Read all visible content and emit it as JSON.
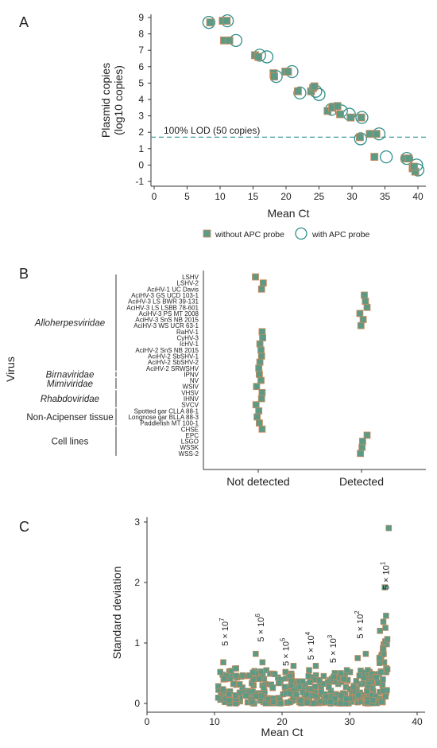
{
  "colors": {
    "marker": "#5d9a86",
    "edge": "#d08a5a",
    "open": "#2f8f8a",
    "lod": "#3a9a9a",
    "axis": "#333333"
  },
  "panels": {
    "a": "A",
    "b": "B",
    "c": "C"
  },
  "chart_data": [
    {
      "type": "scatter",
      "panel": "A",
      "xlabel": "Mean Ct",
      "ylabel_line1": "Plasmid copies",
      "ylabel_line2": "(log10 copies)",
      "xlim": [
        0,
        40
      ],
      "ylim": [
        -1,
        9
      ],
      "xticks": [
        0,
        5,
        10,
        15,
        20,
        25,
        30,
        35,
        40
      ],
      "yticks": [
        -1,
        0,
        1,
        2,
        3,
        4,
        5,
        6,
        7,
        8,
        9
      ],
      "lod": {
        "y": 1.7,
        "label": "100% LOD (50 copies)"
      },
      "legend_position": "bottom",
      "series": [
        {
          "name": "without APC probe",
          "marker": "filled-square",
          "points": [
            [
              8.5,
              8.7
            ],
            [
              10.4,
              8.8
            ],
            [
              11.0,
              8.8
            ],
            [
              10.6,
              7.6
            ],
            [
              11.4,
              7.6
            ],
            [
              15.3,
              6.7
            ],
            [
              15.8,
              6.6
            ],
            [
              18.1,
              5.6
            ],
            [
              18.2,
              5.4
            ],
            [
              19.9,
              5.7
            ],
            [
              20.3,
              5.7
            ],
            [
              21.8,
              4.5
            ],
            [
              23.8,
              4.5
            ],
            [
              24.1,
              4.7
            ],
            [
              24.3,
              4.8
            ],
            [
              26.3,
              3.3
            ],
            [
              27.0,
              3.5
            ],
            [
              27.8,
              3.6
            ],
            [
              28.2,
              3.1
            ],
            [
              29.8,
              2.9
            ],
            [
              31.2,
              1.7
            ],
            [
              31.4,
              2.9
            ],
            [
              32.7,
              1.9
            ],
            [
              33.4,
              0.5
            ],
            [
              33.7,
              1.9
            ],
            [
              38.0,
              0.4
            ],
            [
              38.6,
              0.4
            ],
            [
              39.2,
              -0.2
            ],
            [
              39.6,
              -0.4
            ],
            [
              39.4,
              -0.1
            ]
          ]
        },
        {
          "name": "with APC probe",
          "marker": "open-circle",
          "points": [
            [
              8.3,
              8.7
            ],
            [
              11.1,
              8.8
            ],
            [
              12.4,
              7.6
            ],
            [
              16.0,
              6.7
            ],
            [
              17.1,
              6.6
            ],
            [
              18.5,
              5.4
            ],
            [
              20.9,
              5.7
            ],
            [
              22.1,
              4.4
            ],
            [
              24.5,
              4.5
            ],
            [
              25.0,
              4.3
            ],
            [
              26.9,
              3.4
            ],
            [
              28.4,
              3.3
            ],
            [
              29.6,
              3.1
            ],
            [
              31.5,
              2.9
            ],
            [
              31.3,
              1.6
            ],
            [
              34.1,
              1.9
            ],
            [
              35.2,
              0.5
            ],
            [
              38.3,
              0.4
            ],
            [
              39.8,
              0.0
            ],
            [
              40.0,
              -0.3
            ]
          ]
        }
      ]
    },
    {
      "type": "scatter",
      "panel": "B",
      "ylabel": "Virus",
      "categories": [
        "Not detected",
        "Detected"
      ],
      "groups": [
        {
          "name": "Alloherpesviridae",
          "italic": true
        },
        {
          "name": "Birnaviridae",
          "italic": true
        },
        {
          "name": "Mimiviridae",
          "italic": true
        },
        {
          "name": "Rhabdoviridae",
          "italic": true
        },
        {
          "name": "Non-Acipenser tissue",
          "italic": false
        },
        {
          "name": "Cell lines",
          "italic": false
        }
      ],
      "rows": [
        {
          "label": "LSHV",
          "group": 0,
          "result": 0,
          "jitter": -0.25
        },
        {
          "label": "LSHV-2",
          "group": 0,
          "result": 0,
          "jitter": 0.45
        },
        {
          "label": "AciHV-1 UC Davis",
          "group": 0,
          "result": 0,
          "jitter": 0.3
        },
        {
          "label": "AciHV-3 GS UCD 103-1",
          "group": 0,
          "result": 1,
          "jitter": 0.25
        },
        {
          "label": "AciHV-3 LS BWR 39-131",
          "group": 0,
          "result": 1,
          "jitter": 0.35
        },
        {
          "label": "AciHV-3 LS LSBB 78-601",
          "group": 0,
          "result": 1,
          "jitter": 0.5
        },
        {
          "label": "AciHV-3 PS MT 2008",
          "group": 0,
          "result": 1,
          "jitter": -0.15
        },
        {
          "label": "AciHV-3 SnS NB 2015",
          "group": 0,
          "result": 1,
          "jitter": 0.15
        },
        {
          "label": "AciHV-3 WS UCR 63-1",
          "group": 0,
          "result": 1,
          "jitter": -0.05
        },
        {
          "label": "RaHV-1",
          "group": 0,
          "result": 0,
          "jitter": 0.35
        },
        {
          "label": "CyHV-3",
          "group": 0,
          "result": 0,
          "jitter": 0.4
        },
        {
          "label": "IcHV-1",
          "group": 0,
          "result": 0,
          "jitter": 0.15
        },
        {
          "label": "AciHV-2 SnS NB 2015",
          "group": 0,
          "result": 0,
          "jitter": 0.25
        },
        {
          "label": "AciHV-2 SbSHV-1",
          "group": 0,
          "result": 0,
          "jitter": 0.3
        },
        {
          "label": "AciHV-2 SbSHV-2",
          "group": 0,
          "result": 0,
          "jitter": 0.15
        },
        {
          "label": "AciHV-2 SRWSHV",
          "group": 0,
          "result": 0,
          "jitter": 0.05
        },
        {
          "label": "IPNV",
          "group": 1,
          "result": 0,
          "jitter": 0.1
        },
        {
          "label": "NV",
          "group": 2,
          "result": 0,
          "jitter": 0.25
        },
        {
          "label": "WSIV",
          "group": 2,
          "result": 0,
          "jitter": -0.15
        },
        {
          "label": "VHSV",
          "group": 3,
          "result": 0,
          "jitter": 0.35
        },
        {
          "label": "IHNV",
          "group": 3,
          "result": 0,
          "jitter": 0.3
        },
        {
          "label": "SVCV",
          "group": 3,
          "result": 0,
          "jitter": -0.2
        },
        {
          "label": "Spotted gar CLLA 88-1",
          "group": 4,
          "result": 0,
          "jitter": 0.05
        },
        {
          "label": "Longnose gar BLLA 88-3",
          "group": 4,
          "result": 0,
          "jitter": -0.1
        },
        {
          "label": "Paddlefish MT 100-1",
          "group": 4,
          "result": 0,
          "jitter": 0.1
        },
        {
          "label": "CHSE",
          "group": 5,
          "result": 0,
          "jitter": 0.35
        },
        {
          "label": "EPC",
          "group": 5,
          "result": 1,
          "jitter": 0.5
        },
        {
          "label": "LSGO",
          "group": 5,
          "result": 1,
          "jitter": 0.1
        },
        {
          "label": "WSSK",
          "group": 5,
          "result": 1,
          "jitter": 0.05
        },
        {
          "label": "WSS-2",
          "group": 5,
          "result": 1,
          "jitter": -0.1
        }
      ]
    },
    {
      "type": "scatter",
      "panel": "C",
      "xlabel": "Mean Ct",
      "ylabel": "Standard deviation",
      "xlim": [
        0,
        40
      ],
      "ylim": [
        0,
        3
      ],
      "xticks": [
        0,
        10,
        20,
        30,
        40
      ],
      "yticks": [
        0,
        1,
        2,
        3
      ],
      "annotations": [
        {
          "base": "5 × 10",
          "exp": "7",
          "x": 12.0,
          "y": 0.95
        },
        {
          "base": "5 × 10",
          "exp": "6",
          "x": 17.3,
          "y": 1.02
        },
        {
          "base": "5 × 10",
          "exp": "5",
          "x": 21.0,
          "y": 0.62
        },
        {
          "base": "5 × 10",
          "exp": "4",
          "x": 24.7,
          "y": 0.72
        },
        {
          "base": "5 × 10",
          "exp": "3",
          "x": 28.0,
          "y": 0.67
        },
        {
          "base": "5 × 10",
          "exp": "2",
          "x": 32.0,
          "y": 1.07
        },
        {
          "base": "5 × 10",
          "exp": "1",
          "x": 35.8,
          "y": 1.88
        }
      ],
      "groups": [
        {
          "x_min": 10.5,
          "x_max": 14.5,
          "n": 58,
          "sd_max": 0.58,
          "extra": [
            [
              11.3,
              0.68
            ],
            [
              13.2,
              0.58
            ]
          ]
        },
        {
          "x_min": 14.5,
          "x_max": 18.5,
          "n": 54,
          "sd_max": 0.55,
          "extra": [
            [
              16.1,
              0.82
            ],
            [
              17.1,
              0.68
            ]
          ]
        },
        {
          "x_min": 18.5,
          "x_max": 22.5,
          "n": 56,
          "sd_max": 0.5,
          "extra": [
            [
              20.5,
              0.52
            ],
            [
              21.7,
              0.62
            ]
          ]
        },
        {
          "x_min": 22.5,
          "x_max": 26.5,
          "n": 56,
          "sd_max": 0.48,
          "extra": [
            [
              24.0,
              0.55
            ],
            [
              25.0,
              0.62
            ]
          ]
        },
        {
          "x_min": 26.5,
          "x_max": 30.5,
          "n": 56,
          "sd_max": 0.52,
          "extra": [
            [
              28.7,
              0.5
            ],
            [
              29.6,
              0.55
            ]
          ]
        },
        {
          "x_min": 30.3,
          "x_max": 33.0,
          "n": 50,
          "sd_max": 0.55,
          "extra": [
            [
              31.2,
              0.75
            ],
            [
              32.4,
              0.82
            ],
            [
              32.7,
              0.55
            ]
          ]
        },
        {
          "x_min": 32.5,
          "x_max": 35.8,
          "n": 70,
          "sd_max": 1.1,
          "extra": [
            [
              35.2,
              1.92
            ],
            [
              35.4,
              1.45
            ],
            [
              35.0,
              1.35
            ],
            [
              35.3,
              1.25
            ],
            [
              34.5,
              1.2
            ],
            [
              35.8,
              2.9
            ]
          ]
        }
      ]
    }
  ]
}
